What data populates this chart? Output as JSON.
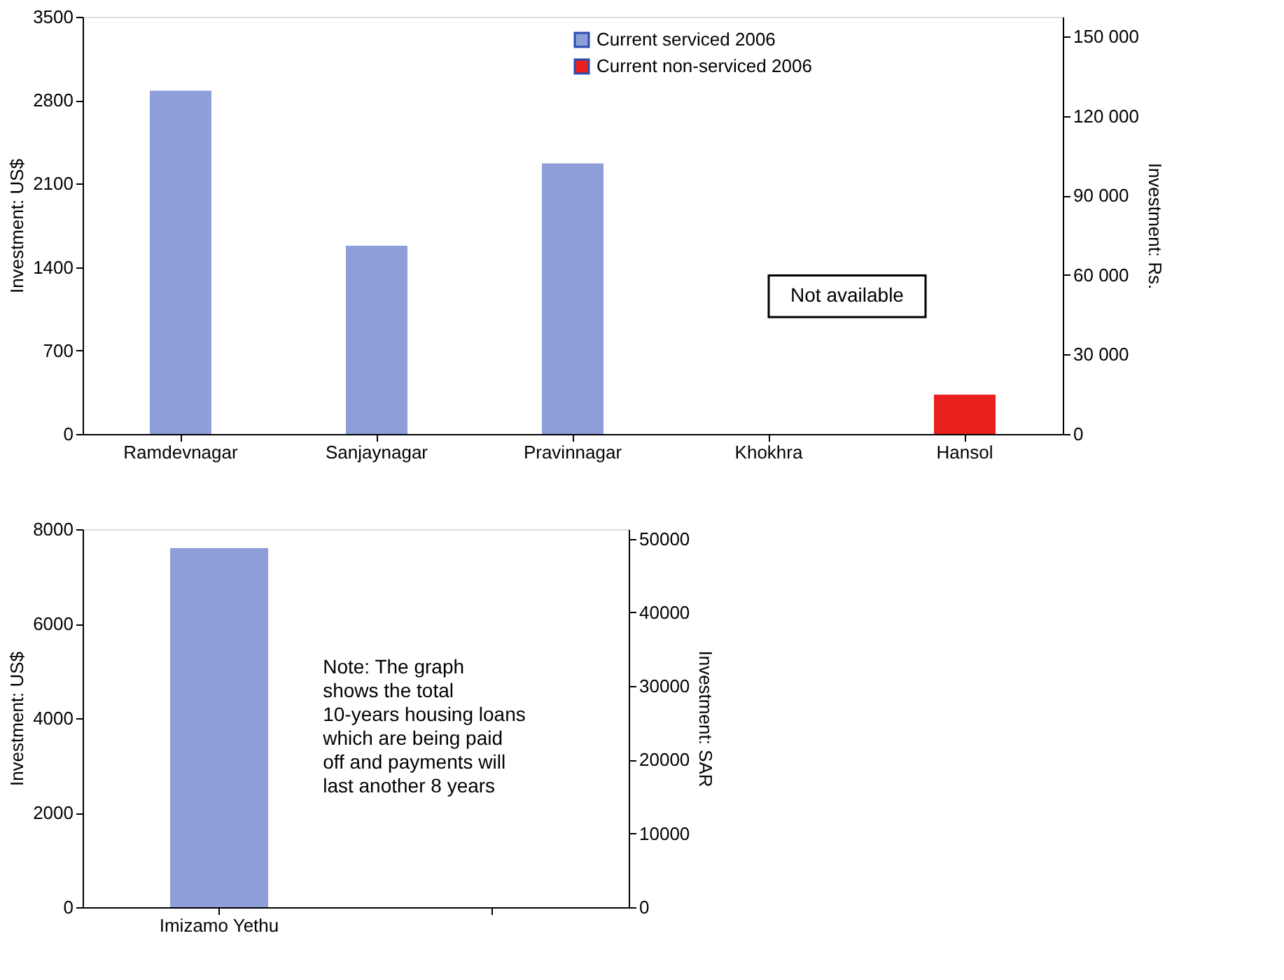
{
  "chart_data": [
    {
      "type": "bar",
      "categories": [
        "Ramdevnagar",
        "Sanjaynagar",
        "Pravinnagar",
        "Khokhra",
        "Hansol"
      ],
      "ylabel": "Investment: US$",
      "y2label": "Investment: Rs.",
      "series": [
        {
          "name": "Current serviced 2006",
          "color": "#8d9ed9",
          "values": [
            2880,
            1580,
            2270,
            null,
            null
          ]
        },
        {
          "name": "Current non-serviced 2006",
          "color": "#e8201e",
          "values": [
            null,
            null,
            null,
            null,
            330
          ]
        }
      ],
      "ylim": [
        0,
        3500
      ],
      "yticks": [
        0,
        700,
        1400,
        2100,
        2800,
        3500
      ],
      "y2lim": [
        0,
        157500
      ],
      "y2ticks": [
        0,
        {
          "value": 30000,
          "label": "30 000"
        },
        {
          "value": 60000,
          "label": "60 000"
        },
        {
          "value": 90000,
          "label": "90 000"
        },
        {
          "value": 120000,
          "label": "120 000"
        },
        {
          "value": 150000,
          "label": "150 000"
        }
      ],
      "annotations": [
        "Not available"
      ],
      "legend": "top right",
      "grid": false
    },
    {
      "type": "bar",
      "categories": [
        "Imizamo Yethu",
        null
      ],
      "ylabel": "Investment: US$",
      "y2label": "Investment: SAR",
      "series": [
        {
          "name": "Current serviced 2006",
          "color": "#8d9ed9",
          "values": [
            7600,
            null
          ]
        }
      ],
      "ylim": [
        0,
        8000
      ],
      "yticks": [
        0,
        2000,
        4000,
        6000,
        8000
      ],
      "y2lim": [
        0,
        51300
      ],
      "y2ticks": [
        0,
        10000,
        20000,
        30000,
        40000,
        50000
      ],
      "annotations": [
        "Note: The graph\nshows the total\n10-years housing loans\nwhich are being paid\noff and payments will\nlast another 8 years"
      ],
      "legend": "top right",
      "grid": false
    }
  ]
}
